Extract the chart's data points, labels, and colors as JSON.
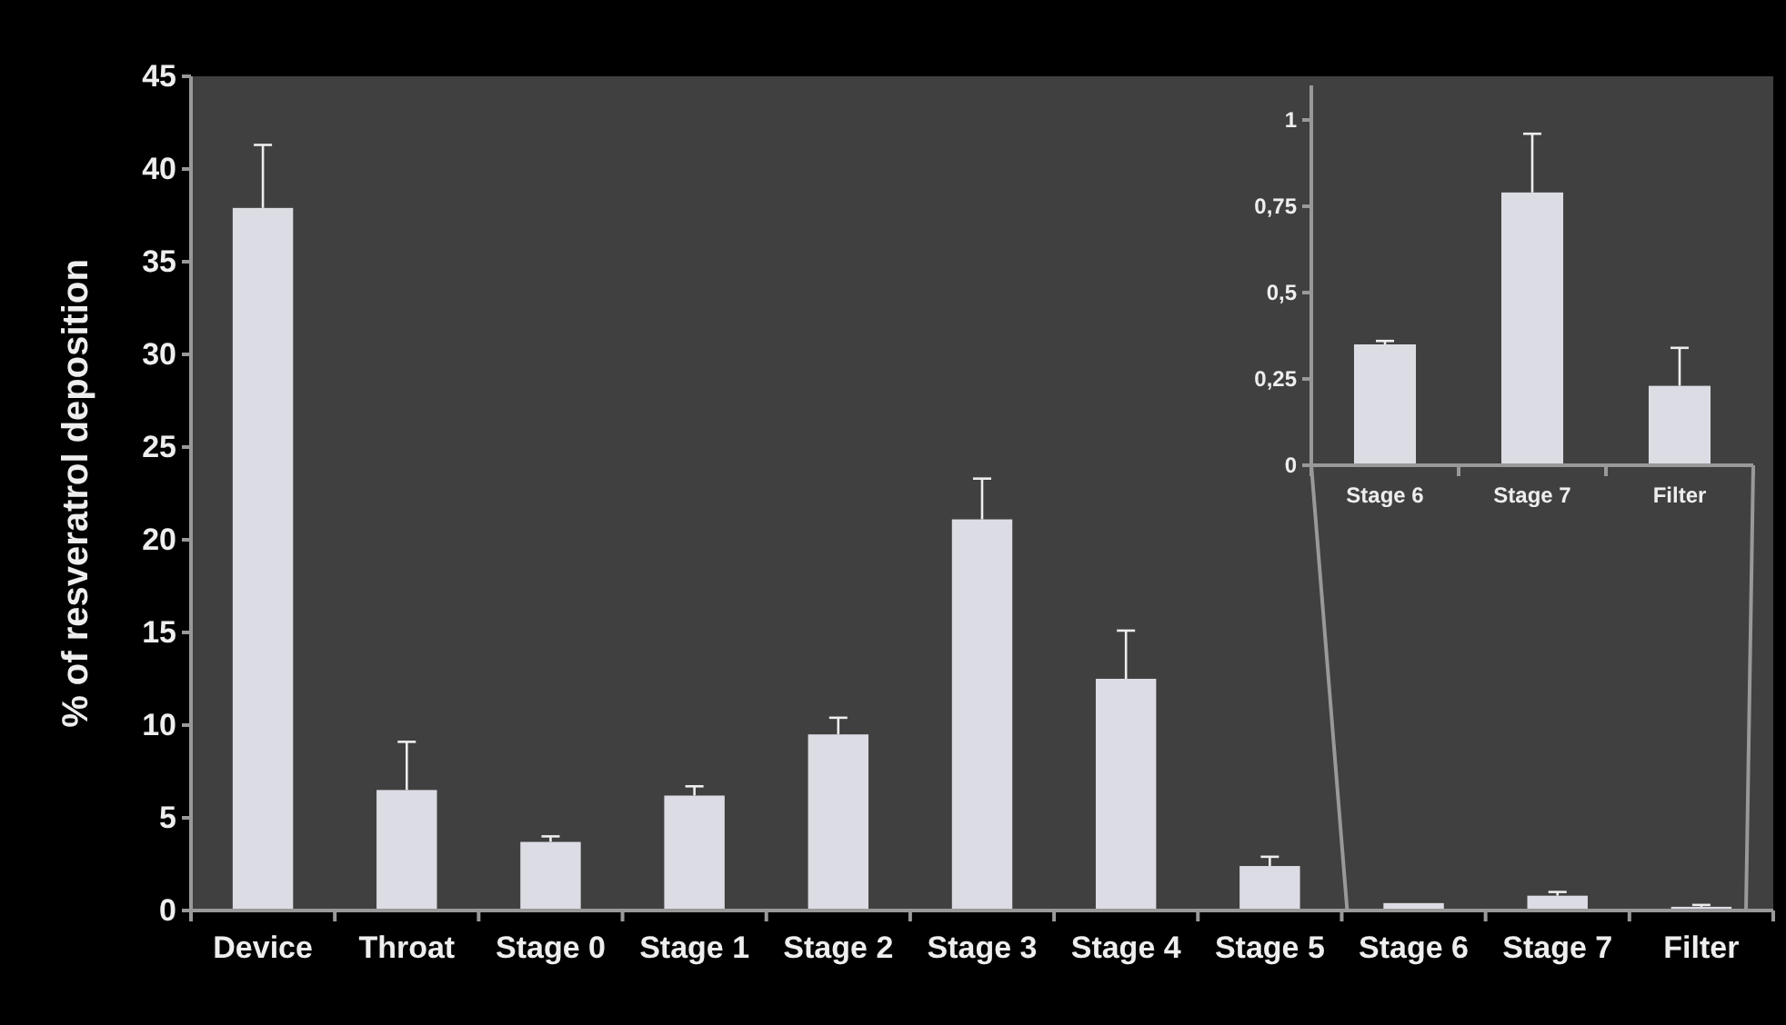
{
  "chart_data": [
    {
      "type": "bar",
      "ylabel": "% of resveratrol deposition",
      "categories": [
        "Device",
        "Throat",
        "Stage 0",
        "Stage 1",
        "Stage 2",
        "Stage 3",
        "Stage 4",
        "Stage 5",
        "Stage 6",
        "Stage 7",
        "Filter"
      ],
      "values": [
        37.9,
        6.5,
        3.7,
        6.2,
        9.5,
        21.1,
        12.5,
        2.4,
        0.4,
        0.8,
        0.2
      ],
      "errors": [
        [
          37.9,
          41.3
        ],
        [
          6.5,
          9.1
        ],
        [
          3.7,
          4.0
        ],
        [
          6.2,
          6.7
        ],
        [
          9.5,
          10.4
        ],
        [
          21.1,
          23.3
        ],
        [
          12.5,
          15.1
        ],
        [
          2.4,
          2.9
        ],
        null,
        [
          0.8,
          1.0
        ],
        [
          0.2,
          0.3
        ]
      ],
      "color": "#dcdce4",
      "ylim": [
        0,
        45
      ],
      "yticks": [
        0,
        5,
        10,
        15,
        20,
        25,
        30,
        35,
        40,
        45
      ]
    },
    {
      "type": "bar",
      "categories": [
        "Stage 6",
        "Stage 7",
        "Filter"
      ],
      "values": [
        0.35,
        0.79,
        0.23
      ],
      "errors": [
        [
          0.35,
          0.36
        ],
        [
          0.79,
          0.96
        ],
        [
          0.23,
          0.34
        ]
      ],
      "color": "#dcdce4",
      "ylim": [
        0,
        1.1
      ],
      "yticks": [
        0,
        {
          "value": 0.25,
          "label": "0,25"
        },
        {
          "value": 0.5,
          "label": "0,5"
        },
        {
          "value": 0.75,
          "label": "0,75"
        },
        1
      ]
    }
  ]
}
